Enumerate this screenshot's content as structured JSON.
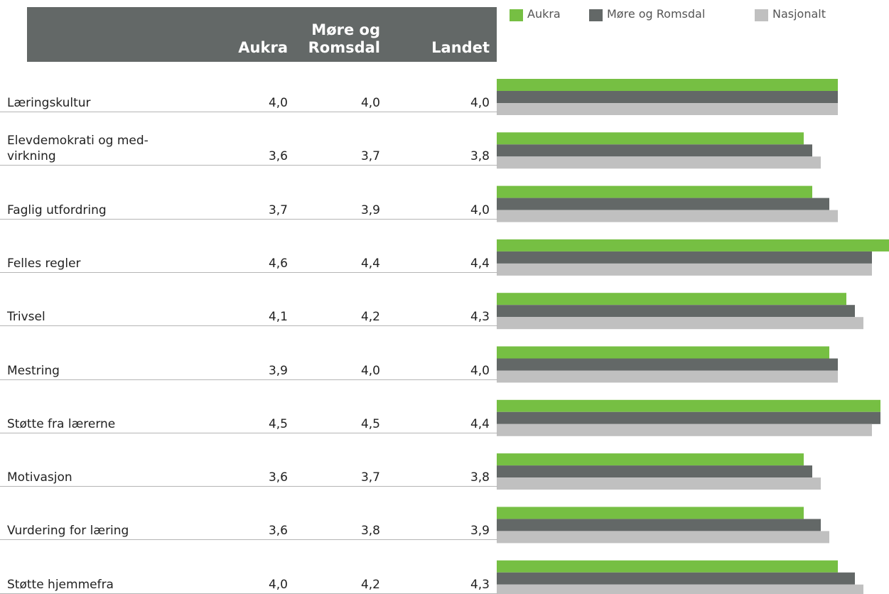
{
  "chart_data": {
    "type": "bar",
    "orientation": "horizontal",
    "column_headers": [
      "Aukra",
      "Møre og Romsdal",
      "Landet"
    ],
    "categories": [
      "Læringskultur",
      "Elevdemokrati og med-virkning",
      "Faglig utfordring",
      "Felles regler",
      "Trivsel",
      "Mestring",
      "Støtte fra lærerne",
      "Motivasjon",
      "Vurdering for læring",
      "Støtte hjemmefra"
    ],
    "series": [
      {
        "name": "Aukra",
        "color": "#76bf43",
        "values": [
          4.0,
          3.6,
          3.7,
          4.6,
          4.1,
          3.9,
          4.5,
          3.6,
          3.6,
          4.0
        ],
        "value_labels": [
          "4,0",
          "3,6",
          "3,7",
          "4,6",
          "4,1",
          "3,9",
          "4,5",
          "3,6",
          "3,6",
          "4,0"
        ]
      },
      {
        "name": "Møre og Romsdal",
        "color": "#636867",
        "values": [
          4.0,
          3.7,
          3.9,
          4.4,
          4.2,
          4.0,
          4.5,
          3.7,
          3.8,
          4.2
        ],
        "value_labels": [
          "4,0",
          "3,7",
          "3,9",
          "4,4",
          "4,2",
          "4,0",
          "4,5",
          "3,7",
          "3,8",
          "4,2"
        ]
      },
      {
        "name": "Nasjonalt",
        "color": "#c0c0c0",
        "values": [
          4.0,
          3.8,
          4.0,
          4.4,
          4.3,
          4.0,
          4.4,
          3.8,
          3.9,
          4.3
        ],
        "value_labels": [
          "4,0",
          "3,8",
          "4,0",
          "4,4",
          "4,3",
          "4,0",
          "4,4",
          "3,8",
          "3,9",
          "4,3"
        ]
      }
    ]
  }
}
